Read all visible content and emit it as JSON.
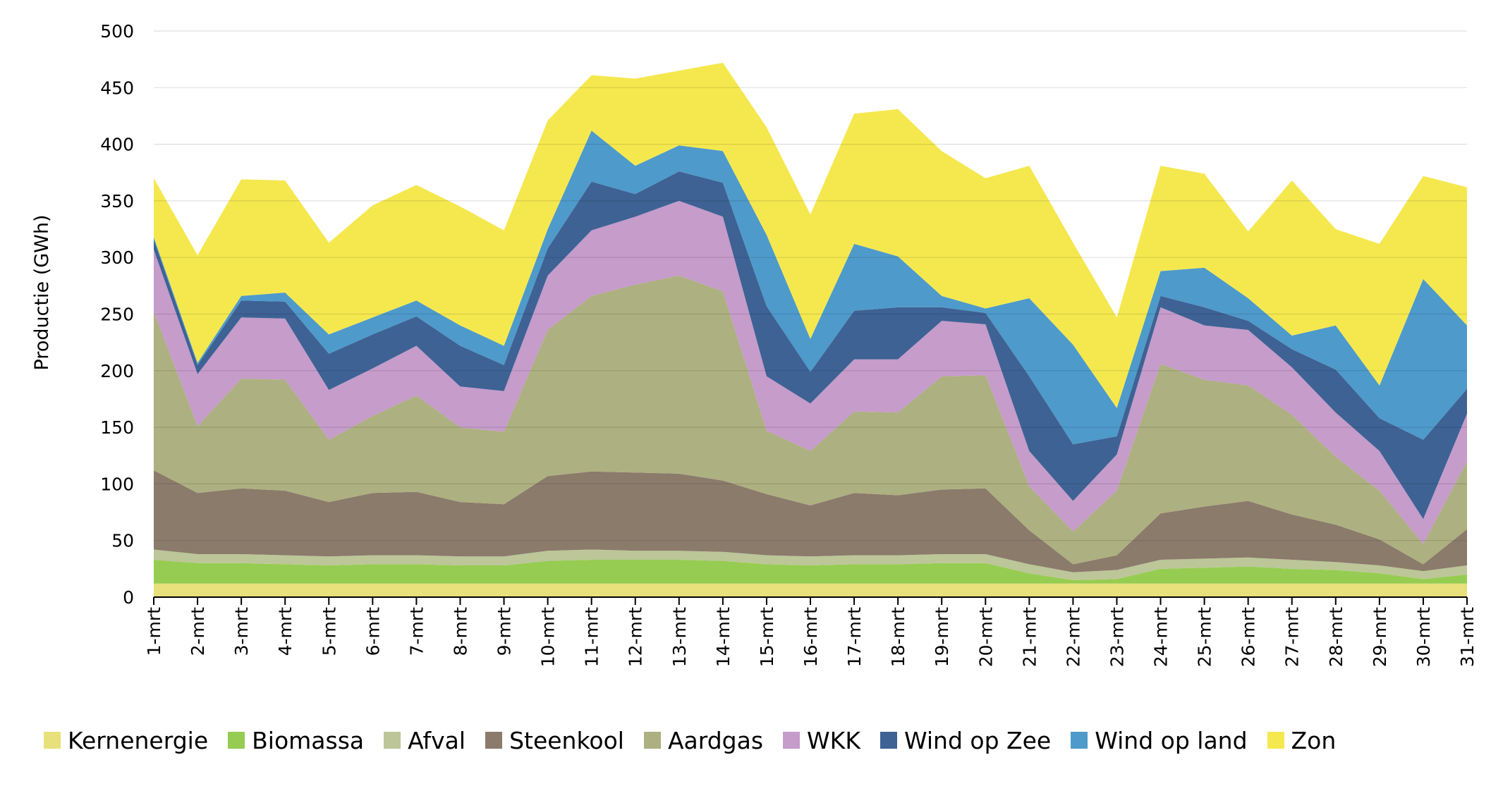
{
  "chart_data": {
    "type": "area",
    "stacked": true,
    "title": "",
    "xlabel": "",
    "ylabel": "Productie (GWh)",
    "ylim": [
      0,
      500
    ],
    "yticks": [
      0,
      50,
      100,
      150,
      200,
      250,
      300,
      350,
      400,
      450,
      500
    ],
    "ytick_labels": [
      "0",
      "50",
      "100",
      "150",
      "200",
      "250",
      "300",
      "350",
      "400",
      "450",
      "500"
    ],
    "legend_position": "bottom",
    "categories": [
      "1-mrt",
      "2-mrt",
      "3-mrt",
      "4-mrt",
      "5-mrt",
      "6-mrt",
      "7-mrt",
      "8-mrt",
      "9-mrt",
      "10-mrt",
      "11-mrt",
      "12-mrt",
      "13-mrt",
      "14-mrt",
      "15-mrt",
      "16-mrt",
      "17-mrt",
      "18-mrt",
      "19-mrt",
      "20-mrt",
      "21-mrt",
      "22-mrt",
      "23-mrt",
      "24-mrt",
      "25-mrt",
      "26-mrt",
      "27-mrt",
      "28-mrt",
      "29-mrt",
      "30-mrt",
      "31-mrt"
    ],
    "series": [
      {
        "name": "Kernenergie",
        "color": "#E8E07A",
        "values": [
          12,
          12,
          12,
          12,
          12,
          12,
          12,
          12,
          12,
          12,
          12,
          12,
          12,
          12,
          12,
          12,
          12,
          12,
          12,
          12,
          12,
          12,
          12,
          12,
          12,
          12,
          12,
          12,
          12,
          12,
          12
        ]
      },
      {
        "name": "Biomassa",
        "color": "#96CC52",
        "values": [
          21,
          18,
          18,
          17,
          16,
          17,
          17,
          16,
          16,
          20,
          21,
          21,
          21,
          20,
          17,
          16,
          17,
          17,
          18,
          18,
          9,
          3,
          4,
          13,
          14,
          15,
          13,
          12,
          9,
          4,
          8
        ]
      },
      {
        "name": "Afval",
        "color": "#BCC698",
        "values": [
          9,
          8,
          8,
          8,
          8,
          8,
          8,
          8,
          8,
          9,
          9,
          8,
          8,
          8,
          8,
          8,
          8,
          8,
          8,
          8,
          8,
          7,
          8,
          8,
          8,
          8,
          8,
          7,
          7,
          7,
          8
        ]
      },
      {
        "name": "Steenkool",
        "color": "#8B7B6B",
        "values": [
          70,
          54,
          58,
          57,
          48,
          55,
          56,
          48,
          46,
          66,
          69,
          69,
          68,
          63,
          54,
          45,
          55,
          53,
          57,
          58,
          30,
          7,
          13,
          41,
          46,
          50,
          40,
          33,
          23,
          6,
          32
        ]
      },
      {
        "name": "Aardgas",
        "color": "#ADB080",
        "values": [
          140,
          59,
          97,
          98,
          55,
          68,
          85,
          66,
          64,
          129,
          155,
          166,
          175,
          167,
          56,
          48,
          72,
          73,
          100,
          100,
          39,
          29,
          57,
          132,
          112,
          102,
          88,
          60,
          43,
          18,
          60
        ]
      },
      {
        "name": "WKK",
        "color": "#C59CCA",
        "values": [
          55,
          46,
          54,
          54,
          44,
          42,
          44,
          36,
          36,
          48,
          58,
          60,
          66,
          66,
          48,
          42,
          46,
          47,
          49,
          45,
          31,
          27,
          32,
          50,
          48,
          49,
          42,
          39,
          35,
          22,
          42
        ]
      },
      {
        "name": "Wind op Zee",
        "color": "#3E6294",
        "values": [
          9,
          8,
          15,
          15,
          32,
          30,
          26,
          36,
          23,
          24,
          43,
          20,
          26,
          30,
          62,
          28,
          43,
          46,
          12,
          10,
          66,
          50,
          16,
          10,
          16,
          8,
          16,
          38,
          29,
          70,
          22
        ]
      },
      {
        "name": "Wind op land",
        "color": "#4E9ACA",
        "values": [
          2,
          2,
          4,
          8,
          17,
          15,
          14,
          18,
          17,
          17,
          45,
          25,
          23,
          28,
          63,
          29,
          59,
          45,
          10,
          4,
          69,
          88,
          25,
          22,
          35,
          20,
          12,
          39,
          29,
          142,
          56
        ]
      },
      {
        "name": "Zon",
        "color": "#F5E84F",
        "values": [
          52,
          95,
          103,
          99,
          81,
          99,
          102,
          105,
          102,
          96,
          49,
          77,
          66,
          78,
          95,
          110,
          115,
          130,
          128,
          115,
          117,
          90,
          80,
          93,
          83,
          59,
          137,
          85,
          125,
          91,
          122
        ]
      }
    ]
  }
}
